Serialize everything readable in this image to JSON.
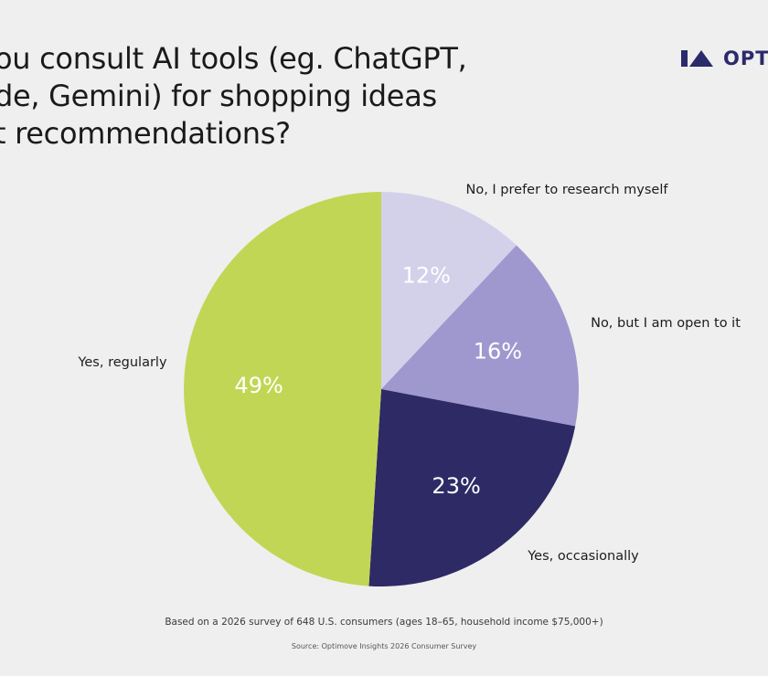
{
  "title_lines": [
    "ou consult AI tools (eg. ChatGPT,",
    "de, Gemini) for shopping ideas",
    "t recommendations?"
  ],
  "logo": {
    "text": "OPT",
    "color": "#2b2a6b",
    "icon": "optimove-logo-mark"
  },
  "chart_data": {
    "type": "pie",
    "slices": [
      {
        "label": "No, I prefer to research myself",
        "value": 12,
        "display": "12%",
        "color": "#d3d0ea"
      },
      {
        "label": "No, but I am open to it",
        "value": 16,
        "display": "16%",
        "color": "#9f98cf"
      },
      {
        "label": "Yes, occasionally",
        "value": 23,
        "display": "23%",
        "color": "#2d2a66"
      },
      {
        "label": "Yes, regularly",
        "value": 49,
        "display": "49%",
        "color": "#c2d655"
      }
    ],
    "start": "12 o'clock",
    "direction": "clockwise",
    "legend": "callout labels beside slices"
  },
  "footnote": "Based on a 2026 survey of 648 U.S. consumers (ages 18–65, household income $75,000+)",
  "source": "Source: Optimove Insights 2026 Consumer Survey"
}
